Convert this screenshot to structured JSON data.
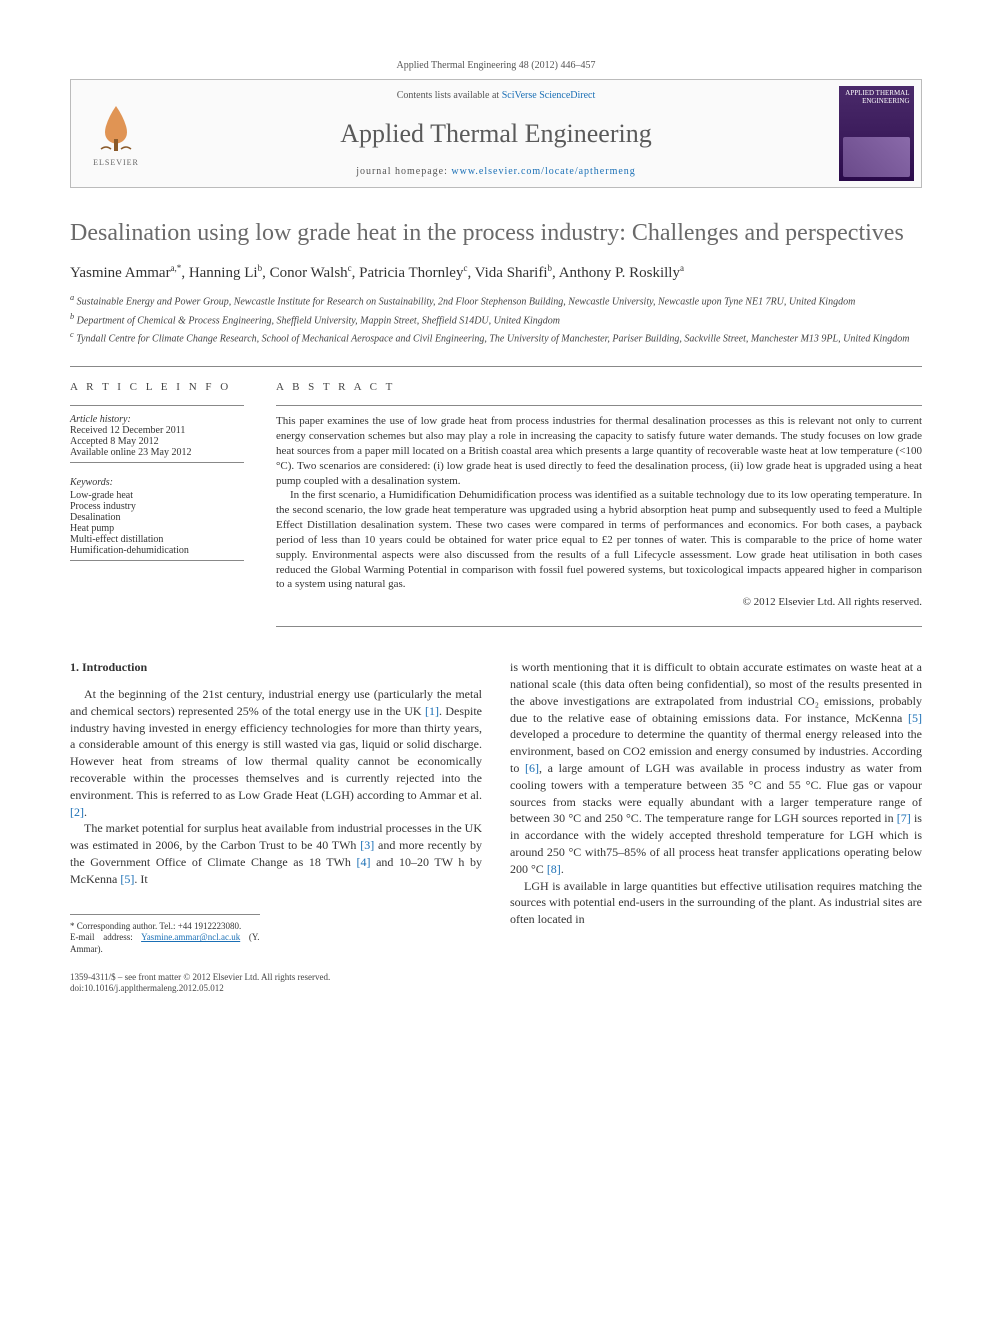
{
  "cite": "Applied Thermal Engineering 48 (2012) 446–457",
  "header": {
    "contents_prefix": "Contents lists available at ",
    "contents_link": "SciVerse ScienceDirect",
    "journal": "Applied Thermal Engineering",
    "homepage_prefix": "journal homepage: ",
    "homepage_link": "www.elsevier.com/locate/apthermeng",
    "publisher": "ELSEVIER",
    "cover_title": "APPLIED THERMAL ENGINEERING"
  },
  "title": "Desalination using low grade heat in the process industry: Challenges and perspectives",
  "authors_html": "Yasmine Ammar<sup>a,*</sup>, Hanning Li<sup>b</sup>, Conor Walsh<sup>c</sup>, Patricia Thornley<sup>c</sup>, Vida Sharifi<sup>b</sup>, Anthony P. Roskilly<sup>a</sup>",
  "affiliations": [
    "a Sustainable Energy and Power Group, Newcastle Institute for Research on Sustainability, 2nd Floor Stephenson Building, Newcastle University, Newcastle upon Tyne NE1 7RU, United Kingdom",
    "b Department of Chemical & Process Engineering, Sheffield University, Mappin Street, Sheffield S14DU, United Kingdom",
    "c Tyndall Centre for Climate Change Research, School of Mechanical Aerospace and Civil Engineering, The University of Manchester, Pariser Building, Sackville Street, Manchester M13 9PL, United Kingdom"
  ],
  "info": {
    "heading_left": "A R T I C L E   I N F O",
    "heading_right": "A B S T R A C T",
    "history_label": "Article history:",
    "history": [
      "Received 12 December 2011",
      "Accepted 8 May 2012",
      "Available online 23 May 2012"
    ],
    "keywords_label": "Keywords:",
    "keywords": [
      "Low-grade heat",
      "Process industry",
      "Desalination",
      "Heat pump",
      "Multi-effect distillation",
      "Humification-dehumidication"
    ]
  },
  "abstract": {
    "p1": "This paper examines the use of low grade heat from process industries for thermal desalination processes as this is relevant not only to current energy conservation schemes but also may play a role in increasing the capacity to satisfy future water demands. The study focuses on low grade heat sources from a paper mill located on a British coastal area which presents a large quantity of recoverable waste heat at low temperature (<100 °C). Two scenarios are considered: (i) low grade heat is used directly to feed the desalination process, (ii) low grade heat is upgraded using a heat pump coupled with a desalination system.",
    "p2": "In the first scenario, a Humidification Dehumidification process was identified as a suitable technology due to its low operating temperature. In the second scenario, the low grade heat temperature was upgraded using a hybrid absorption heat pump and subsequently used to feed a Multiple Effect Distillation desalination system. These two cases were compared in terms of performances and economics. For both cases, a payback period of less than 10 years could be obtained for water price equal to £2 per tonnes of water. This is comparable to the price of home water supply. Environmental aspects were also discussed from the results of a full Lifecycle assessment. Low grade heat utilisation in both cases reduced the Global Warming Potential in comparison with fossil fuel powered systems, but toxicological impacts appeared higher in comparison to a system using natural gas.",
    "copyright": "© 2012 Elsevier Ltd. All rights reserved."
  },
  "body": {
    "section_heading": "1. Introduction",
    "col1_p1": "At the beginning of the 21st century, industrial energy use (particularly the metal and chemical sectors) represented 25% of the total energy use in the UK [1]. Despite industry having invested in energy efficiency technologies for more than thirty years, a considerable amount of this energy is still wasted via gas, liquid or solid discharge. However heat from streams of low thermal quality cannot be economically recoverable within the processes themselves and is currently rejected into the environment. This is referred to as Low Grade Heat (LGH) according to Ammar et al. [2].",
    "col1_p2": "The market potential for surplus heat available from industrial processes in the UK was estimated in 2006, by the Carbon Trust to be 40 TWh [3] and more recently by the Government Office of Climate Change as 18 TWh [4] and 10–20 TW h by McKenna [5]. It",
    "col2_p1": "is worth mentioning that it is difficult to obtain accurate estimates on waste heat at a national scale (this data often being confidential), so most of the results presented in the above investigations are extrapolated from industrial CO₂ emissions, probably due to the relative ease of obtaining emissions data. For instance, McKenna [5] developed a procedure to determine the quantity of thermal energy released into the environment, based on CO2 emission and energy consumed by industries. According to [6], a large amount of LGH was available in process industry as water from cooling towers with a temperature between 35 °C and 55 °C. Flue gas or vapour sources from stacks were equally abundant with a larger temperature range of between 30 °C and 250 °C. The temperature range for LGH sources reported in [7] is in accordance with the widely accepted threshold temperature for LGH which is around 250 °C with75–85% of all process heat transfer applications operating below 200 °C [8].",
    "col2_p2": "LGH is available in large quantities but effective utilisation requires matching the sources with potential end-users in the surrounding of the plant. As industrial sites are often located in"
  },
  "footnotes": {
    "corr": "* Corresponding author. Tel.: +44 1912223080.",
    "email_label": "E-mail address: ",
    "email": "Yasmine.ammar@ncl.ac.uk",
    "email_suffix": " (Y. Ammar)."
  },
  "footer": {
    "line1": "1359-4311/$ – see front matter © 2012 Elsevier Ltd. All rights reserved.",
    "line2": "doi:10.1016/j.applthermaleng.2012.05.012"
  },
  "colors": {
    "link": "#1a6fb5",
    "title_gray": "#6a6a6a",
    "cover_bg": "#3a1a5a"
  }
}
